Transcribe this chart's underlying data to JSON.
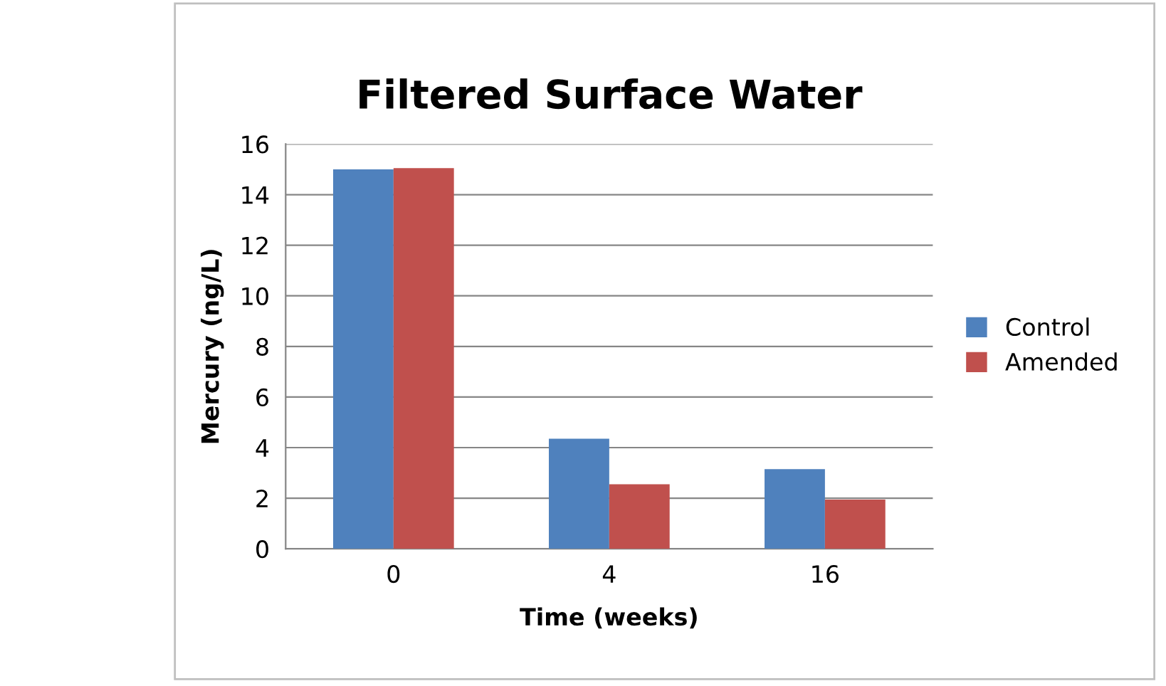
{
  "chart_data": {
    "type": "bar",
    "title": "Filtered Surface Water",
    "xlabel": "Time (weeks)",
    "ylabel": "Mercury (ng/L)",
    "categories": [
      "0",
      "4",
      "16"
    ],
    "series": [
      {
        "name": "Control",
        "color": "#4f81bd",
        "values": [
          15.0,
          4.35,
          3.15
        ]
      },
      {
        "name": "Amended",
        "color": "#c0504d",
        "values": [
          15.05,
          2.55,
          1.95
        ]
      }
    ],
    "ylim": [
      0,
      16
    ],
    "yticks": [
      0,
      2,
      4,
      6,
      8,
      10,
      12,
      14,
      16
    ],
    "grid": "y",
    "legend": "right"
  }
}
